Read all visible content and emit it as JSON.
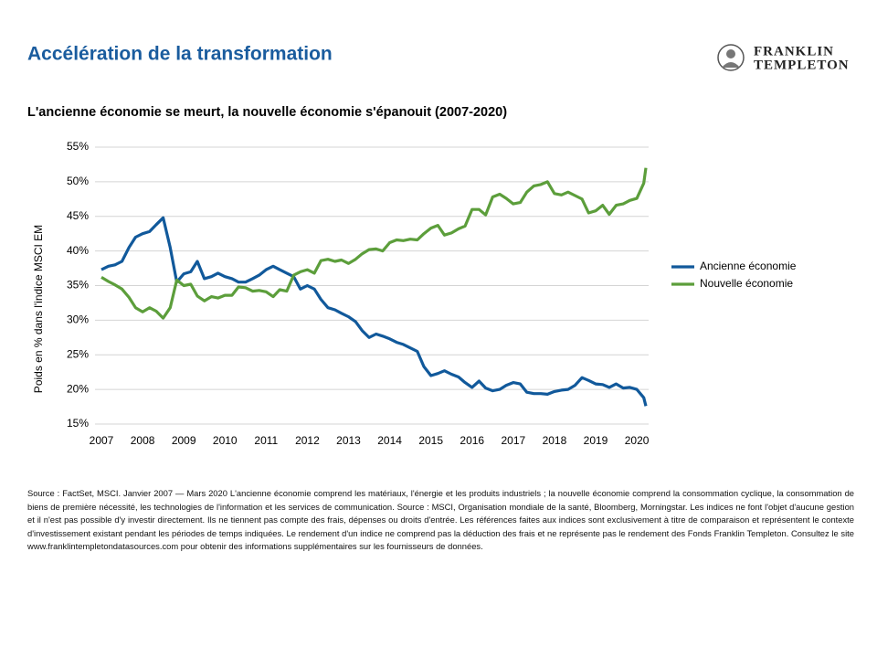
{
  "header": {
    "title": "Accélération de la transformation",
    "logo": [
      "FRANKLIN",
      "TEMPLETON"
    ]
  },
  "chart_data": {
    "type": "line",
    "title": "L'ancienne économie se meurt, la nouvelle économie s'épanouit (2007-2020)",
    "y_label": "Poids en % dans l'indice MSCI EM",
    "x": [
      2007,
      2007.17,
      2007.33,
      2007.5,
      2007.67,
      2007.83,
      2008,
      2008.17,
      2008.33,
      2008.5,
      2008.67,
      2008.83,
      2009,
      2009.17,
      2009.33,
      2009.5,
      2009.67,
      2009.83,
      2010,
      2010.17,
      2010.33,
      2010.5,
      2010.67,
      2010.83,
      2011,
      2011.17,
      2011.33,
      2011.5,
      2011.67,
      2011.83,
      2012,
      2012.17,
      2012.33,
      2012.5,
      2012.67,
      2012.83,
      2013,
      2013.17,
      2013.33,
      2013.5,
      2013.67,
      2013.83,
      2014,
      2014.17,
      2014.33,
      2014.5,
      2014.67,
      2014.83,
      2015,
      2015.17,
      2015.33,
      2015.5,
      2015.67,
      2015.83,
      2016,
      2016.17,
      2016.33,
      2016.5,
      2016.67,
      2016.83,
      2017,
      2017.17,
      2017.33,
      2017.5,
      2017.67,
      2017.83,
      2018,
      2018.17,
      2018.33,
      2018.5,
      2018.67,
      2018.83,
      2019,
      2019.17,
      2019.33,
      2019.5,
      2019.67,
      2019.83,
      2020,
      2020.17,
      2020.22
    ],
    "series": [
      {
        "name": "Ancienne économie",
        "color": "#11599b",
        "values": [
          37.3,
          37.8,
          38.0,
          38.5,
          40.5,
          42.0,
          42.5,
          42.8,
          43.8,
          44.8,
          40.5,
          35.5,
          36.7,
          37.0,
          38.5,
          36.0,
          36.3,
          36.8,
          36.3,
          36.0,
          35.5,
          35.5,
          36.0,
          36.5,
          37.3,
          37.8,
          37.3,
          36.8,
          36.3,
          34.5,
          35.0,
          34.5,
          33.0,
          31.8,
          31.5,
          31.0,
          30.5,
          29.8,
          28.5,
          27.5,
          28.0,
          27.7,
          27.3,
          26.8,
          26.5,
          26.0,
          25.5,
          23.3,
          22.0,
          22.3,
          22.7,
          22.2,
          21.8,
          21.0,
          20.3,
          21.2,
          20.2,
          19.8,
          20.0,
          20.6,
          21.0,
          20.8,
          19.6,
          19.4,
          19.4,
          19.3,
          19.7,
          19.9,
          20.0,
          20.6,
          21.7,
          21.3,
          20.8,
          20.7,
          20.3,
          20.8,
          20.2,
          20.3,
          20.0,
          18.8,
          17.6
        ]
      },
      {
        "name": "Nouvelle économie",
        "color": "#5c9e3b",
        "values": [
          36.2,
          35.6,
          35.1,
          34.5,
          33.3,
          31.8,
          31.2,
          31.8,
          31.3,
          30.3,
          31.8,
          35.8,
          35.0,
          35.2,
          33.5,
          32.8,
          33.4,
          33.2,
          33.6,
          33.6,
          34.8,
          34.7,
          34.2,
          34.3,
          34.1,
          33.4,
          34.4,
          34.2,
          36.5,
          37.0,
          37.3,
          36.8,
          38.6,
          38.8,
          38.5,
          38.7,
          38.2,
          38.8,
          39.6,
          40.2,
          40.3,
          40.0,
          41.2,
          41.6,
          41.5,
          41.7,
          41.6,
          42.5,
          43.3,
          43.7,
          42.3,
          42.6,
          43.2,
          43.6,
          46.0,
          46.0,
          45.2,
          47.8,
          48.2,
          47.6,
          46.8,
          47.0,
          48.5,
          49.4,
          49.6,
          50.0,
          48.3,
          48.1,
          48.5,
          48.0,
          47.5,
          45.5,
          45.8,
          46.6,
          45.3,
          46.6,
          46.8,
          47.3,
          47.6,
          49.8,
          52.0
        ]
      }
    ],
    "xlim": [
      2007,
      2020.22
    ],
    "xticks": [
      2007,
      2008,
      2009,
      2010,
      2011,
      2012,
      2013,
      2014,
      2015,
      2016,
      2017,
      2018,
      2019,
      2020
    ],
    "ylim": [
      15,
      55
    ],
    "yticks": [
      {
        "value": 15,
        "label": "15%"
      },
      {
        "value": 20,
        "label": "20%"
      },
      {
        "value": 25,
        "label": "25%"
      },
      {
        "value": 30,
        "label": "30%"
      },
      {
        "value": 35,
        "label": "35%"
      },
      {
        "value": 40,
        "label": "40%"
      },
      {
        "value": 45,
        "label": "45%"
      },
      {
        "value": 50,
        "label": "50%"
      },
      {
        "value": 55,
        "label": "55%"
      }
    ],
    "grid": true,
    "legend": "right"
  },
  "footnote": "Source : FactSet, MSCI. Janvier 2007 — Mars 2020 L'ancienne économie comprend les matériaux, l'énergie et les produits industriels ; la nouvelle économie comprend la consommation cyclique, la consommation de biens de première nécessité, les technologies de l'information et les services de communication. Source : MSCI, Organisation mondiale de la santé, Bloomberg, Morningstar. Les indices ne font l'objet d'aucune gestion et il n'est pas possible d'y investir directement. Ils ne tiennent pas compte des frais, dépenses ou droits d'entrée. Les références faites aux indices sont exclusivement à titre de comparaison et représentent le contexte d'investissement existant pendant les périodes de temps indiquées. Le rendement d'un indice ne comprend pas la déduction des frais et ne représente pas le rendement des Fonds Franklin Templeton. Consultez le site www.franklintempletondatasources.com pour obtenir des informations supplémentaires sur les fournisseurs de données."
}
